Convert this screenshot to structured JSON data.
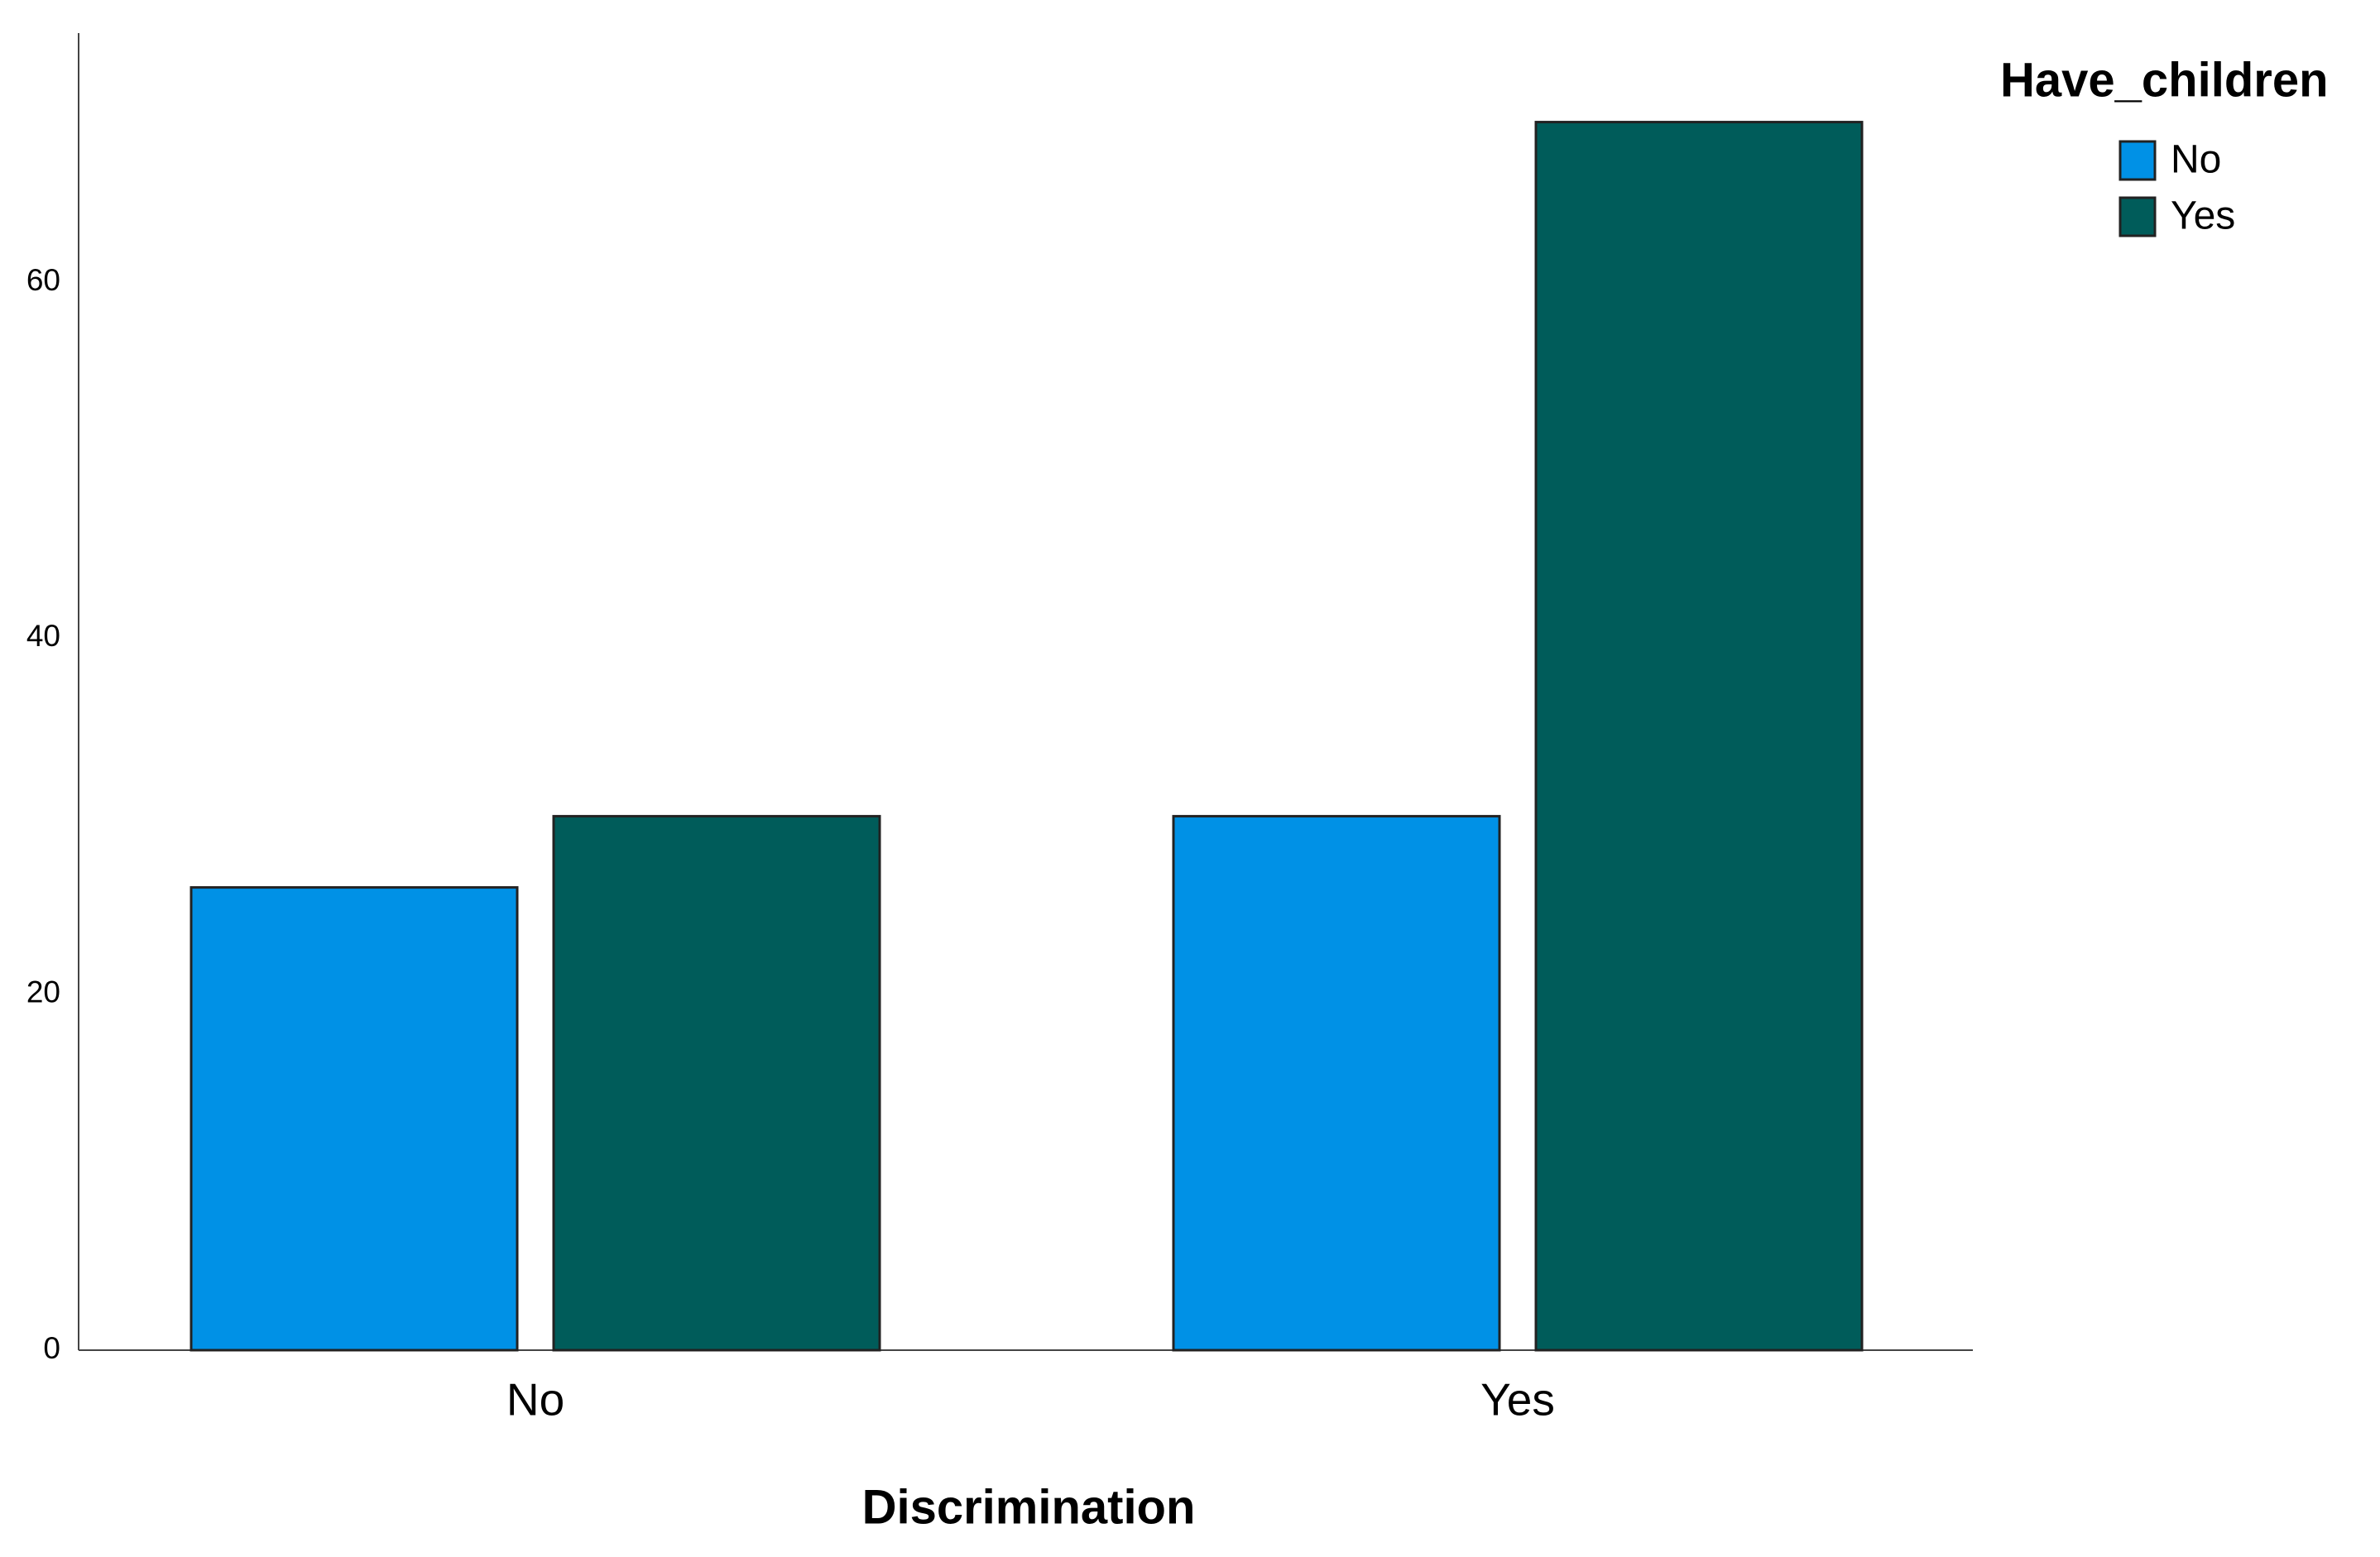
{
  "chart_data": {
    "type": "bar",
    "x_label": "Discrimination",
    "legend_title": "Have_children",
    "categories": [
      "No",
      "Yes"
    ],
    "series": [
      {
        "name": "No",
        "color": "#0091e6",
        "values": [
          26,
          30
        ]
      },
      {
        "name": "Yes",
        "color": "#005c5a",
        "values": [
          30,
          69
        ]
      }
    ],
    "ylim": [
      0,
      74
    ],
    "yticks": [
      0,
      20,
      40,
      60
    ],
    "grid": false,
    "legend": "right"
  }
}
